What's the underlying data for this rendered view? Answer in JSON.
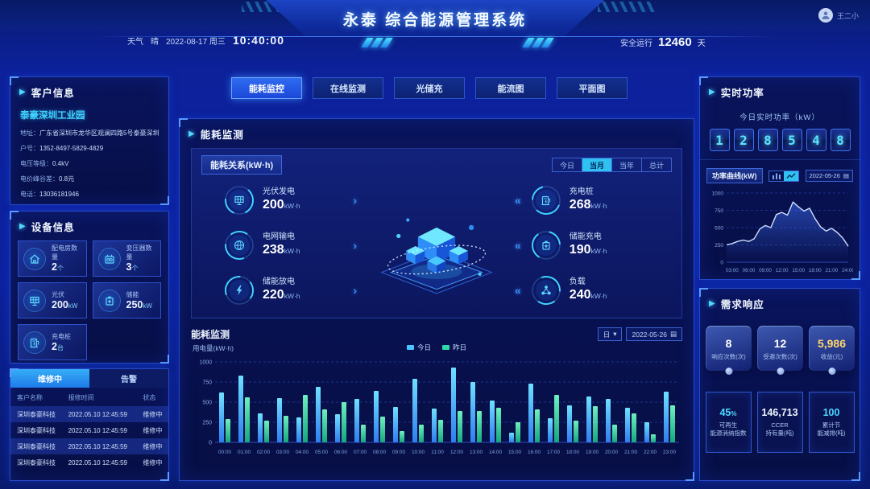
{
  "header": {
    "title": "永泰 综合能源管理系统",
    "weather_label": "天气",
    "weather_value": "晴",
    "date": "2022-08-17 周三",
    "time": "10:40:00",
    "safe_label": "安全运行",
    "safe_days": "12460",
    "safe_unit": "天",
    "user_name": "王二小"
  },
  "icons": {
    "panel_marker": "▶",
    "chevron_right": "›",
    "chevron_left": "«",
    "caret_down": "▾",
    "calendar": "▤"
  },
  "nav_tabs": [
    {
      "label": "能耗监控"
    },
    {
      "label": "在线监测"
    },
    {
      "label": "光储充"
    },
    {
      "label": "能流图"
    },
    {
      "label": "平面图"
    }
  ],
  "customer": {
    "title": "客户信息",
    "name": "泰豪深圳工业园",
    "fields": [
      {
        "label": "地址：",
        "value": "广东省深圳市龙华区观澜四路5号泰豪深圳工业园"
      },
      {
        "label": "户号：",
        "value": "1352-8497-5829-4829"
      },
      {
        "label": "电压等级：",
        "value": "0.4kV"
      },
      {
        "label": "电价峰谷差：",
        "value": "0.8元"
      },
      {
        "label": "电话：",
        "value": "13036181946"
      }
    ]
  },
  "devices": {
    "title": "设备信息",
    "items": [
      {
        "label": "配电房数量",
        "value": "2",
        "unit": "个"
      },
      {
        "label": "变压器数量",
        "value": "3",
        "unit": "个"
      },
      {
        "label": "光伏",
        "value": "200",
        "unit": "kW"
      },
      {
        "label": "储能",
        "value": "250",
        "unit": "kW"
      },
      {
        "label": "充电桩",
        "value": "2",
        "unit": "台"
      }
    ]
  },
  "repair": {
    "tabs": [
      {
        "label": "维修中"
      },
      {
        "label": "告警"
      }
    ],
    "columns": [
      "客户名称",
      "报修时间",
      "状态"
    ],
    "rows": [
      [
        "深圳泰豪科技",
        "2022.05.10  12:45:59",
        "维修中"
      ],
      [
        "深圳泰豪科技",
        "2022.05.10  12:45:59",
        "维修中"
      ],
      [
        "深圳泰豪科技",
        "2022.05.10  12:45:59",
        "维修中"
      ],
      [
        "深圳泰豪科技",
        "2022.05.10  12:45:59",
        "维修中"
      ]
    ]
  },
  "energy_monitor": {
    "title": "能耗监测",
    "relation": {
      "title": "能耗关系(kW·h)",
      "filters": [
        {
          "label": "今日"
        },
        {
          "label": "当月"
        },
        {
          "label": "当年"
        },
        {
          "label": "总计"
        }
      ],
      "left": [
        {
          "label": "光伏发电",
          "value": "200",
          "unit": "kW·h"
        },
        {
          "label": "电网输电",
          "value": "238",
          "unit": "kW·h"
        },
        {
          "label": "储能放电",
          "value": "220",
          "unit": "kW·h"
        }
      ],
      "right": [
        {
          "label": "充电桩",
          "value": "268",
          "unit": "kW·h"
        },
        {
          "label": "储能充电",
          "value": "190",
          "unit": "kW·h"
        },
        {
          "label": "负载",
          "value": "240",
          "unit": "kW·h"
        }
      ]
    },
    "usage": {
      "title": "能耗监测",
      "period_select": "日",
      "date": "2022-05-26",
      "y_label": "用电量(kW·h)",
      "legend": [
        {
          "label": "今日",
          "color": "#4fc3ff"
        },
        {
          "label": "昨日",
          "color": "#2fd8a8"
        }
      ]
    }
  },
  "realtime": {
    "title": "实时功率",
    "subtitle": "今日实时功率（kW）",
    "digits": [
      "1",
      "2",
      "8",
      "5",
      "4",
      "8"
    ],
    "curve_title": "功率曲线(kW)",
    "date": "2022-05-26"
  },
  "demand": {
    "title": "需求响应",
    "stats": [
      {
        "value": "8",
        "label": "响应次数(次)"
      },
      {
        "value": "12",
        "label": "受邀次数(次)"
      },
      {
        "value": "5,986",
        "label": "收益(元)"
      }
    ],
    "cards": [
      {
        "value": "45",
        "suffix": "%",
        "line1": "可再生",
        "line2": "能源消纳指数"
      },
      {
        "value": "146,713",
        "suffix": "",
        "line1": "CCER",
        "line2": "持有量(吨)"
      },
      {
        "value": "100",
        "suffix": "",
        "line1": "累计节",
        "line2": "能减排(吨)"
      }
    ]
  },
  "chart_data": [
    {
      "type": "bar",
      "title": "能耗监测 用电量(kW·h) 按小时",
      "ylabel": "用电量(kW·h)",
      "ylim": [
        0,
        1000
      ],
      "yticks": [
        0,
        250,
        500,
        750,
        1000
      ],
      "grid": true,
      "legend_position": "top-center",
      "categories": [
        "00:00",
        "01:00",
        "02:00",
        "03:00",
        "04:00",
        "05:00",
        "06:00",
        "07:00",
        "08:00",
        "09:00",
        "10:00",
        "11:00",
        "12:00",
        "13:00",
        "14:00",
        "15:00",
        "16:00",
        "17:00",
        "18:00",
        "19:00",
        "20:00",
        "21:00",
        "22:00",
        "23:00"
      ],
      "series": [
        {
          "name": "今日",
          "color_top": "#6fe0ff",
          "color_bottom": "#2f7df0",
          "values": [
            620,
            830,
            360,
            550,
            310,
            690,
            350,
            540,
            640,
            440,
            790,
            420,
            930,
            750,
            520,
            120,
            730,
            300,
            460,
            570,
            540,
            430,
            250,
            630
          ]
        },
        {
          "name": "昨日",
          "color_top": "#6ff0c0",
          "color_bottom": "#14a87e",
          "values": [
            290,
            560,
            270,
            330,
            590,
            410,
            500,
            220,
            320,
            140,
            220,
            280,
            390,
            390,
            430,
            250,
            410,
            590,
            270,
            450,
            220,
            360,
            100,
            460
          ]
        }
      ]
    },
    {
      "type": "line",
      "title": "功率曲线(kW)",
      "ylim": [
        0,
        1000
      ],
      "yticks": [
        0,
        250,
        500,
        750,
        1000
      ],
      "grid": true,
      "x_start_hour": 2,
      "x_end_hour": 24,
      "x_ticks": [
        "03:00",
        "06:00",
        "09:00",
        "12:00",
        "15:00",
        "18:00",
        "21:00",
        "24:00"
      ],
      "tick_hours": [
        3,
        6,
        9,
        12,
        15,
        18,
        21,
        24
      ],
      "values": [
        250,
        270,
        300,
        320,
        300,
        340,
        480,
        530,
        500,
        690,
        720,
        680,
        870,
        800,
        740,
        780,
        630,
        510,
        450,
        490,
        430,
        350,
        230
      ],
      "line_color": "#cfe0ff",
      "area_color": "#3c6cf0"
    }
  ]
}
